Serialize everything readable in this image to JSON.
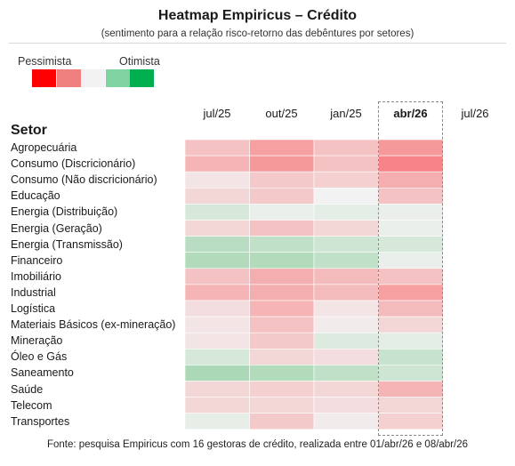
{
  "title": "Heatmap Empiricus – Crédito",
  "subtitle": "(sentimento para a relação risco-retorno das debêntures por setores)",
  "footer": "Fonte: pesquisa Empiricus com 16 gestoras de crédito, realizada entre 01/abr/26 e 08/abr/26",
  "legend": {
    "pessimist_label": "Pessimista",
    "optimist_label": "Otimista",
    "colors": [
      "#ff0000",
      "#f08080",
      "#f2f2f2",
      "#7fd4a1",
      "#00b050"
    ]
  },
  "chart_data": {
    "type": "heatmap",
    "title": "Heatmap Empiricus – Crédito",
    "subtitle": "(sentimento para a relação risco-retorno das debêntures por setores)",
    "row_header": "Setor",
    "columns": [
      "jul/25",
      "out/25",
      "jan/25",
      "abr/26",
      "jul/26"
    ],
    "highlight_column": "abr/26",
    "scale": {
      "min": -1,
      "max": 1,
      "min_label": "Pessimista",
      "max_label": "Otimista"
    },
    "rows": [
      {
        "label": "Agropecuária",
        "values": [
          -0.35,
          -0.6,
          -0.35,
          -0.65,
          null
        ]
      },
      {
        "label": "Consumo (Discricionário)",
        "values": [
          -0.45,
          -0.65,
          -0.35,
          -0.8,
          null
        ]
      },
      {
        "label": "Consumo (Não discricionário)",
        "values": [
          -0.1,
          -0.3,
          -0.25,
          -0.5,
          null
        ]
      },
      {
        "label": "Educação",
        "values": [
          -0.2,
          -0.3,
          0.0,
          -0.35,
          null
        ]
      },
      {
        "label": "Energia (Distribuição)",
        "values": [
          0.2,
          0.05,
          0.1,
          0.05,
          null
        ]
      },
      {
        "label": "Energia (Geração)",
        "values": [
          -0.2,
          -0.35,
          -0.2,
          0.05,
          null
        ]
      },
      {
        "label": "Energia (Transmissão)",
        "values": [
          0.4,
          0.35,
          0.25,
          0.2,
          null
        ]
      },
      {
        "label": "Financeiro",
        "values": [
          0.45,
          0.45,
          0.35,
          0.05,
          null
        ]
      },
      {
        "label": "Imobiliário",
        "values": [
          -0.35,
          -0.5,
          -0.4,
          -0.35,
          null
        ]
      },
      {
        "label": "Industrial",
        "values": [
          -0.45,
          -0.5,
          -0.4,
          -0.6,
          null
        ]
      },
      {
        "label": "Logística",
        "values": [
          -0.15,
          -0.45,
          -0.1,
          -0.4,
          null
        ]
      },
      {
        "label": "Materiais Básicos (ex-mineração)",
        "values": [
          -0.1,
          -0.35,
          -0.05,
          -0.2,
          null
        ]
      },
      {
        "label": "Mineração",
        "values": [
          -0.1,
          -0.3,
          0.15,
          0.1,
          null
        ]
      },
      {
        "label": "Óleo e Gás",
        "values": [
          0.2,
          -0.2,
          -0.15,
          0.3,
          null
        ]
      },
      {
        "label": "Saneamento",
        "values": [
          0.5,
          0.45,
          0.35,
          0.25,
          null
        ]
      },
      {
        "label": "Saúde",
        "values": [
          -0.2,
          -0.25,
          -0.2,
          -0.45,
          null
        ]
      },
      {
        "label": "Telecom",
        "values": [
          -0.2,
          -0.2,
          -0.15,
          -0.2,
          null
        ]
      },
      {
        "label": "Transportes",
        "values": [
          0.08,
          -0.3,
          -0.05,
          -0.25,
          null
        ]
      }
    ]
  }
}
